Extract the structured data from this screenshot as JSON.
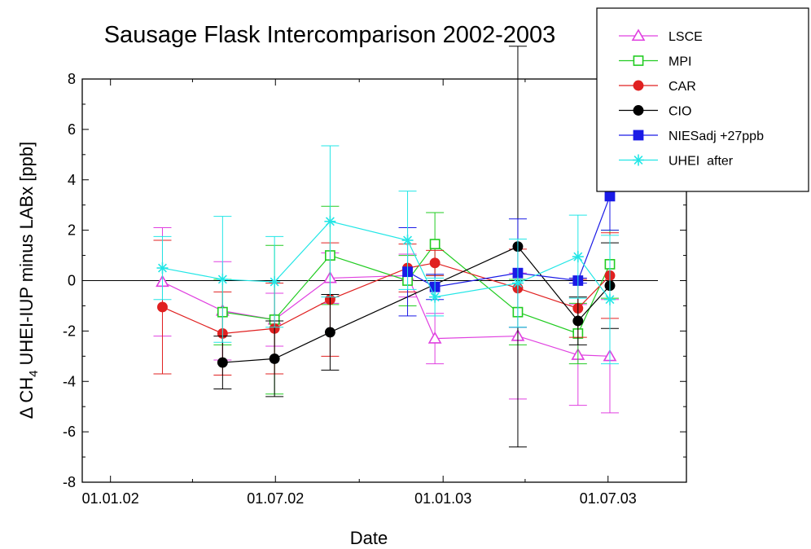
{
  "chart_data": {
    "type": "scatter",
    "title": "Sausage Flask Intercomparison 2002-2003",
    "xlabel": "Date",
    "ylabel": "UHEI-IUP minus LABx [ppb]",
    "ylabel_prefix": "Δ CH",
    "ylabel_subscript": "4",
    "xlim": [
      "2001-12-01",
      "2003-09-25"
    ],
    "ylim": [
      -8,
      8
    ],
    "x_ticks": [
      {
        "date": "2002-01-01",
        "label": "01.01.02"
      },
      {
        "date": "2002-07-01",
        "label": "01.07.02"
      },
      {
        "date": "2003-01-01",
        "label": "01.01.03"
      },
      {
        "date": "2003-07-01",
        "label": "01.07.03"
      }
    ],
    "y_ticks": [
      -8,
      -6,
      -4,
      -2,
      0,
      2,
      4,
      6,
      8
    ],
    "zero_line": true,
    "grid": false,
    "legend_position": "top-right",
    "series": [
      {
        "name": "LSCE",
        "color": "#e040e0",
        "marker": "triangle-open",
        "points": [
          {
            "x": "2002-02-27",
            "y": -0.05,
            "err": 2.15
          },
          {
            "x": "2002-05-04",
            "y": -1.2,
            "err": 1.95
          },
          {
            "x": "2002-06-30",
            "y": -1.55,
            "err": 1.05
          },
          {
            "x": "2002-08-30",
            "y": 0.1,
            "err": 1.0
          },
          {
            "x": "2002-11-23",
            "y": 0.2,
            "err": 0.85
          },
          {
            "x": "2002-12-23",
            "y": -2.3,
            "err": 1.0
          },
          {
            "x": "2003-03-24",
            "y": -2.2,
            "err": 2.5
          },
          {
            "x": "2003-05-29",
            "y": -2.95,
            "err": 2.0
          },
          {
            "x": "2003-07-03",
            "y": -3.0,
            "err": 2.25
          }
        ]
      },
      {
        "name": "MPI",
        "color": "#22cc22",
        "marker": "square-open",
        "points": [
          {
            "x": "2002-05-04",
            "y": -1.25,
            "err": 1.3
          },
          {
            "x": "2002-06-30",
            "y": -1.55,
            "err": 2.95
          },
          {
            "x": "2002-08-30",
            "y": 1.0,
            "err": 1.95
          },
          {
            "x": "2002-11-23",
            "y": 0.0,
            "err": 1.0
          },
          {
            "x": "2002-12-23",
            "y": 1.45,
            "err": 1.25
          },
          {
            "x": "2003-03-24",
            "y": -1.25,
            "err": 1.3
          },
          {
            "x": "2003-05-29",
            "y": -2.1,
            "err": 1.2
          },
          {
            "x": "2003-07-03",
            "y": 0.65,
            "err": 1.35
          }
        ]
      },
      {
        "name": "CAR",
        "color": "#e02020",
        "marker": "circle-filled",
        "points": [
          {
            "x": "2002-02-27",
            "y": -1.05,
            "err": 2.65
          },
          {
            "x": "2002-05-04",
            "y": -2.1,
            "err": 1.65
          },
          {
            "x": "2002-06-30",
            "y": -1.9,
            "err": 1.8
          },
          {
            "x": "2002-08-30",
            "y": -0.75,
            "err": 2.25
          },
          {
            "x": "2002-11-23",
            "y": 0.5,
            "err": 0.95
          },
          {
            "x": "2002-12-23",
            "y": 0.7,
            "err": 0.5
          },
          {
            "x": "2003-03-24",
            "y": -0.3,
            "err": 1.55
          },
          {
            "x": "2003-05-29",
            "y": -1.1,
            "err": 1.15
          },
          {
            "x": "2003-07-03",
            "y": 0.2,
            "err": 1.7
          }
        ]
      },
      {
        "name": "CIO",
        "color": "#000000",
        "marker": "circle-filled",
        "points": [
          {
            "x": "2002-05-04",
            "y": -3.25,
            "err": 1.05
          },
          {
            "x": "2002-06-30",
            "y": -3.1,
            "err": 1.5
          },
          {
            "x": "2002-08-30",
            "y": -2.05,
            "err": 1.5
          },
          {
            "x": "2003-03-24",
            "y": 1.35,
            "err": 7.95
          },
          {
            "x": "2003-05-29",
            "y": -1.6,
            "err": 0.95
          },
          {
            "x": "2003-07-03",
            "y": -0.2,
            "err": 1.7
          }
        ]
      },
      {
        "name": "NIESadj +27ppb",
        "color": "#1a1ae6",
        "marker": "square-filled",
        "points": [
          {
            "x": "2002-11-23",
            "y": 0.35,
            "err": 1.75
          },
          {
            "x": "2002-12-23",
            "y": -0.25,
            "err": 0.5
          },
          {
            "x": "2003-03-24",
            "y": 0.3,
            "err": 2.15
          },
          {
            "x": "2003-05-29",
            "y": 0.0,
            "err": 0.1
          },
          {
            "x": "2003-07-03",
            "y": 3.35,
            "err": 1.35
          }
        ]
      },
      {
        "name": "UHEI  after",
        "color": "#22e6e6",
        "marker": "asterisk",
        "points": [
          {
            "x": "2002-02-27",
            "y": 0.5,
            "err": 1.25
          },
          {
            "x": "2002-05-04",
            "y": 0.05,
            "err": 2.5
          },
          {
            "x": "2002-06-30",
            "y": -0.05,
            "err": 1.8
          },
          {
            "x": "2002-08-30",
            "y": 2.35,
            "err": 3.0
          },
          {
            "x": "2002-11-23",
            "y": 1.6,
            "err": 1.95
          },
          {
            "x": "2002-12-23",
            "y": -0.65,
            "err": 0.75
          },
          {
            "x": "2003-03-24",
            "y": -0.1,
            "err": 1.75
          },
          {
            "x": "2003-05-29",
            "y": 0.95,
            "err": 1.65
          },
          {
            "x": "2003-07-03",
            "y": -0.75,
            "err": 2.55
          }
        ]
      }
    ]
  }
}
